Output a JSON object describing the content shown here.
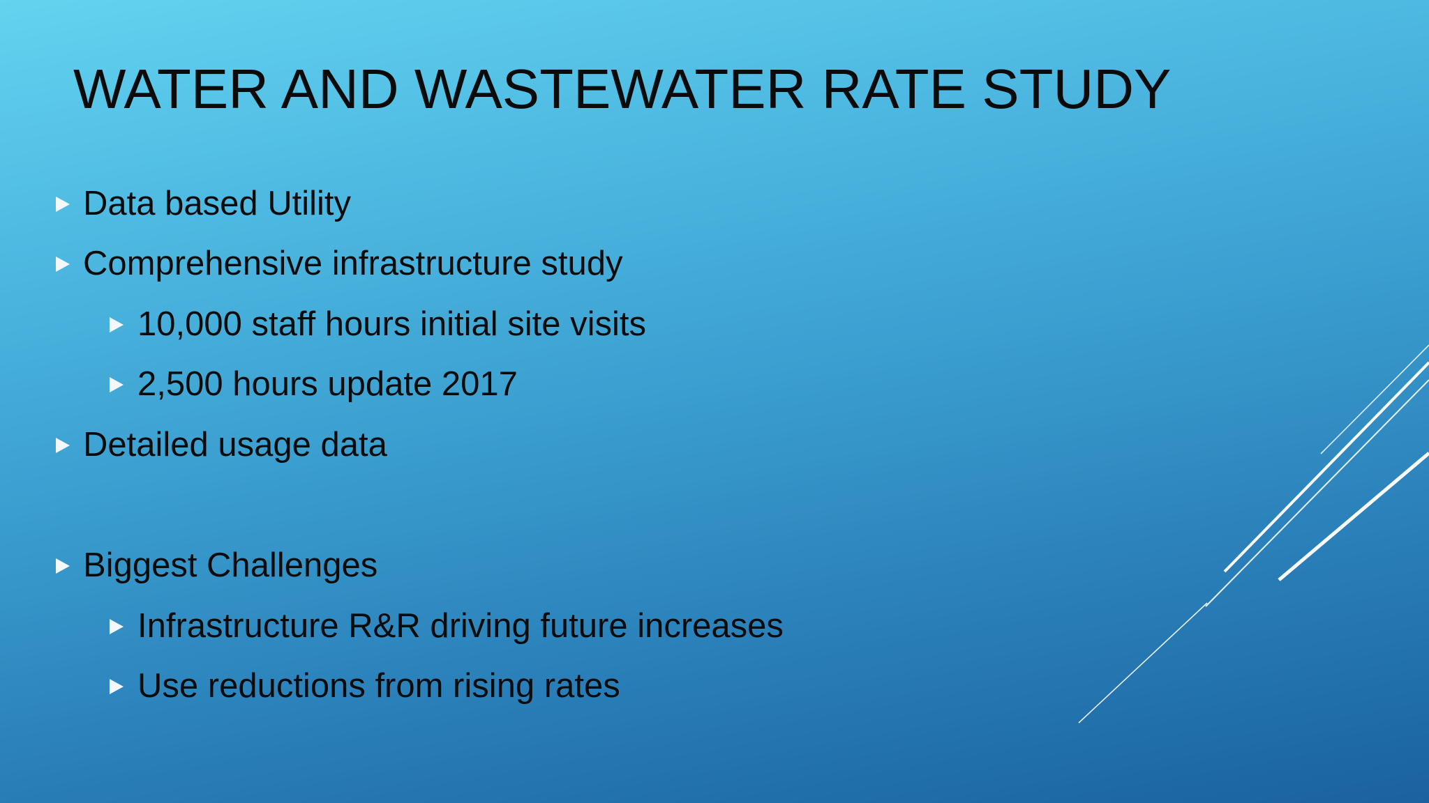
{
  "slide": {
    "title": "WATER AND WASTEWATER RATE STUDY",
    "bullets": [
      {
        "text": "Data based Utility",
        "level": 1
      },
      {
        "text": "Comprehensive infrastructure study",
        "level": 1
      },
      {
        "text": "10,000 staff hours initial site visits",
        "level": 2
      },
      {
        "text": "2,500 hours update 2017",
        "level": 2
      },
      {
        "text": "Detailed usage data",
        "level": 1
      },
      {
        "text": "Biggest Challenges",
        "level": 1
      },
      {
        "text": "Infrastructure R&R driving future increases",
        "level": 2
      },
      {
        "text": "Use reductions from rising rates",
        "level": 2
      }
    ]
  },
  "theme": {
    "bullet_marker_color": "#f4f8fb",
    "deco_line_color": "#ffffff",
    "text_color": "#0b0b0b"
  },
  "icons": {
    "bullet_marker": "triangle-right-icon"
  }
}
